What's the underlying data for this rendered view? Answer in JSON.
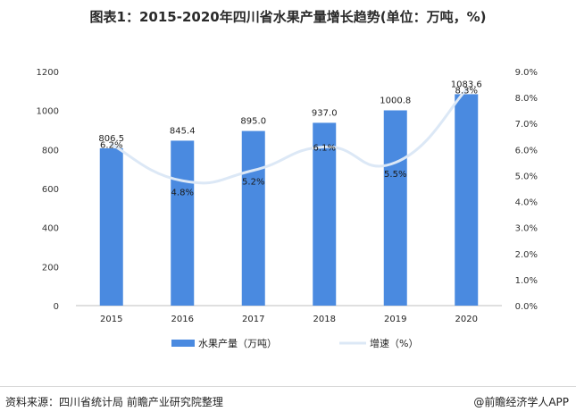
{
  "chart_data": {
    "type": "bar",
    "title": "图表1：2015-2020年四川省水果产量增长趋势(单位：万吨，%)",
    "categories": [
      "2015",
      "2016",
      "2017",
      "2018",
      "2019",
      "2020"
    ],
    "series": [
      {
        "name": "水果产量（万吨）",
        "type": "bar",
        "axis": "left",
        "values": [
          806.5,
          845.4,
          895.0,
          937.0,
          1000.8,
          1083.6
        ],
        "labels": [
          "806.5",
          "845.4",
          "895.0",
          "937.0",
          "1000.8",
          "1083.6"
        ],
        "color": "#4a8ae0"
      },
      {
        "name": "增速（%）",
        "type": "line",
        "axis": "right",
        "smooth": true,
        "values": [
          6.2,
          4.8,
          5.2,
          6.1,
          5.5,
          8.3
        ],
        "labels": [
          "6.2%",
          "4.8%",
          "5.2%",
          "6.1%",
          "5.5%",
          "8.3%"
        ],
        "color": "#dce8f6"
      }
    ],
    "y_left": {
      "ylim": [
        0,
        1200
      ],
      "ticks": [
        "0",
        "200",
        "400",
        "600",
        "800",
        "1000",
        "1200"
      ]
    },
    "y_right": {
      "ylim": [
        0,
        9
      ],
      "ticks": [
        "0.0%",
        "1.0%",
        "2.0%",
        "3.0%",
        "4.0%",
        "5.0%",
        "6.0%",
        "7.0%",
        "8.0%",
        "9.0%"
      ]
    },
    "grid": false,
    "legend": "bottom"
  },
  "footer": {
    "source": "资料来源：四川省统计局 前瞻产业研究院整理",
    "brand": "@前瞻经济学人APP"
  }
}
